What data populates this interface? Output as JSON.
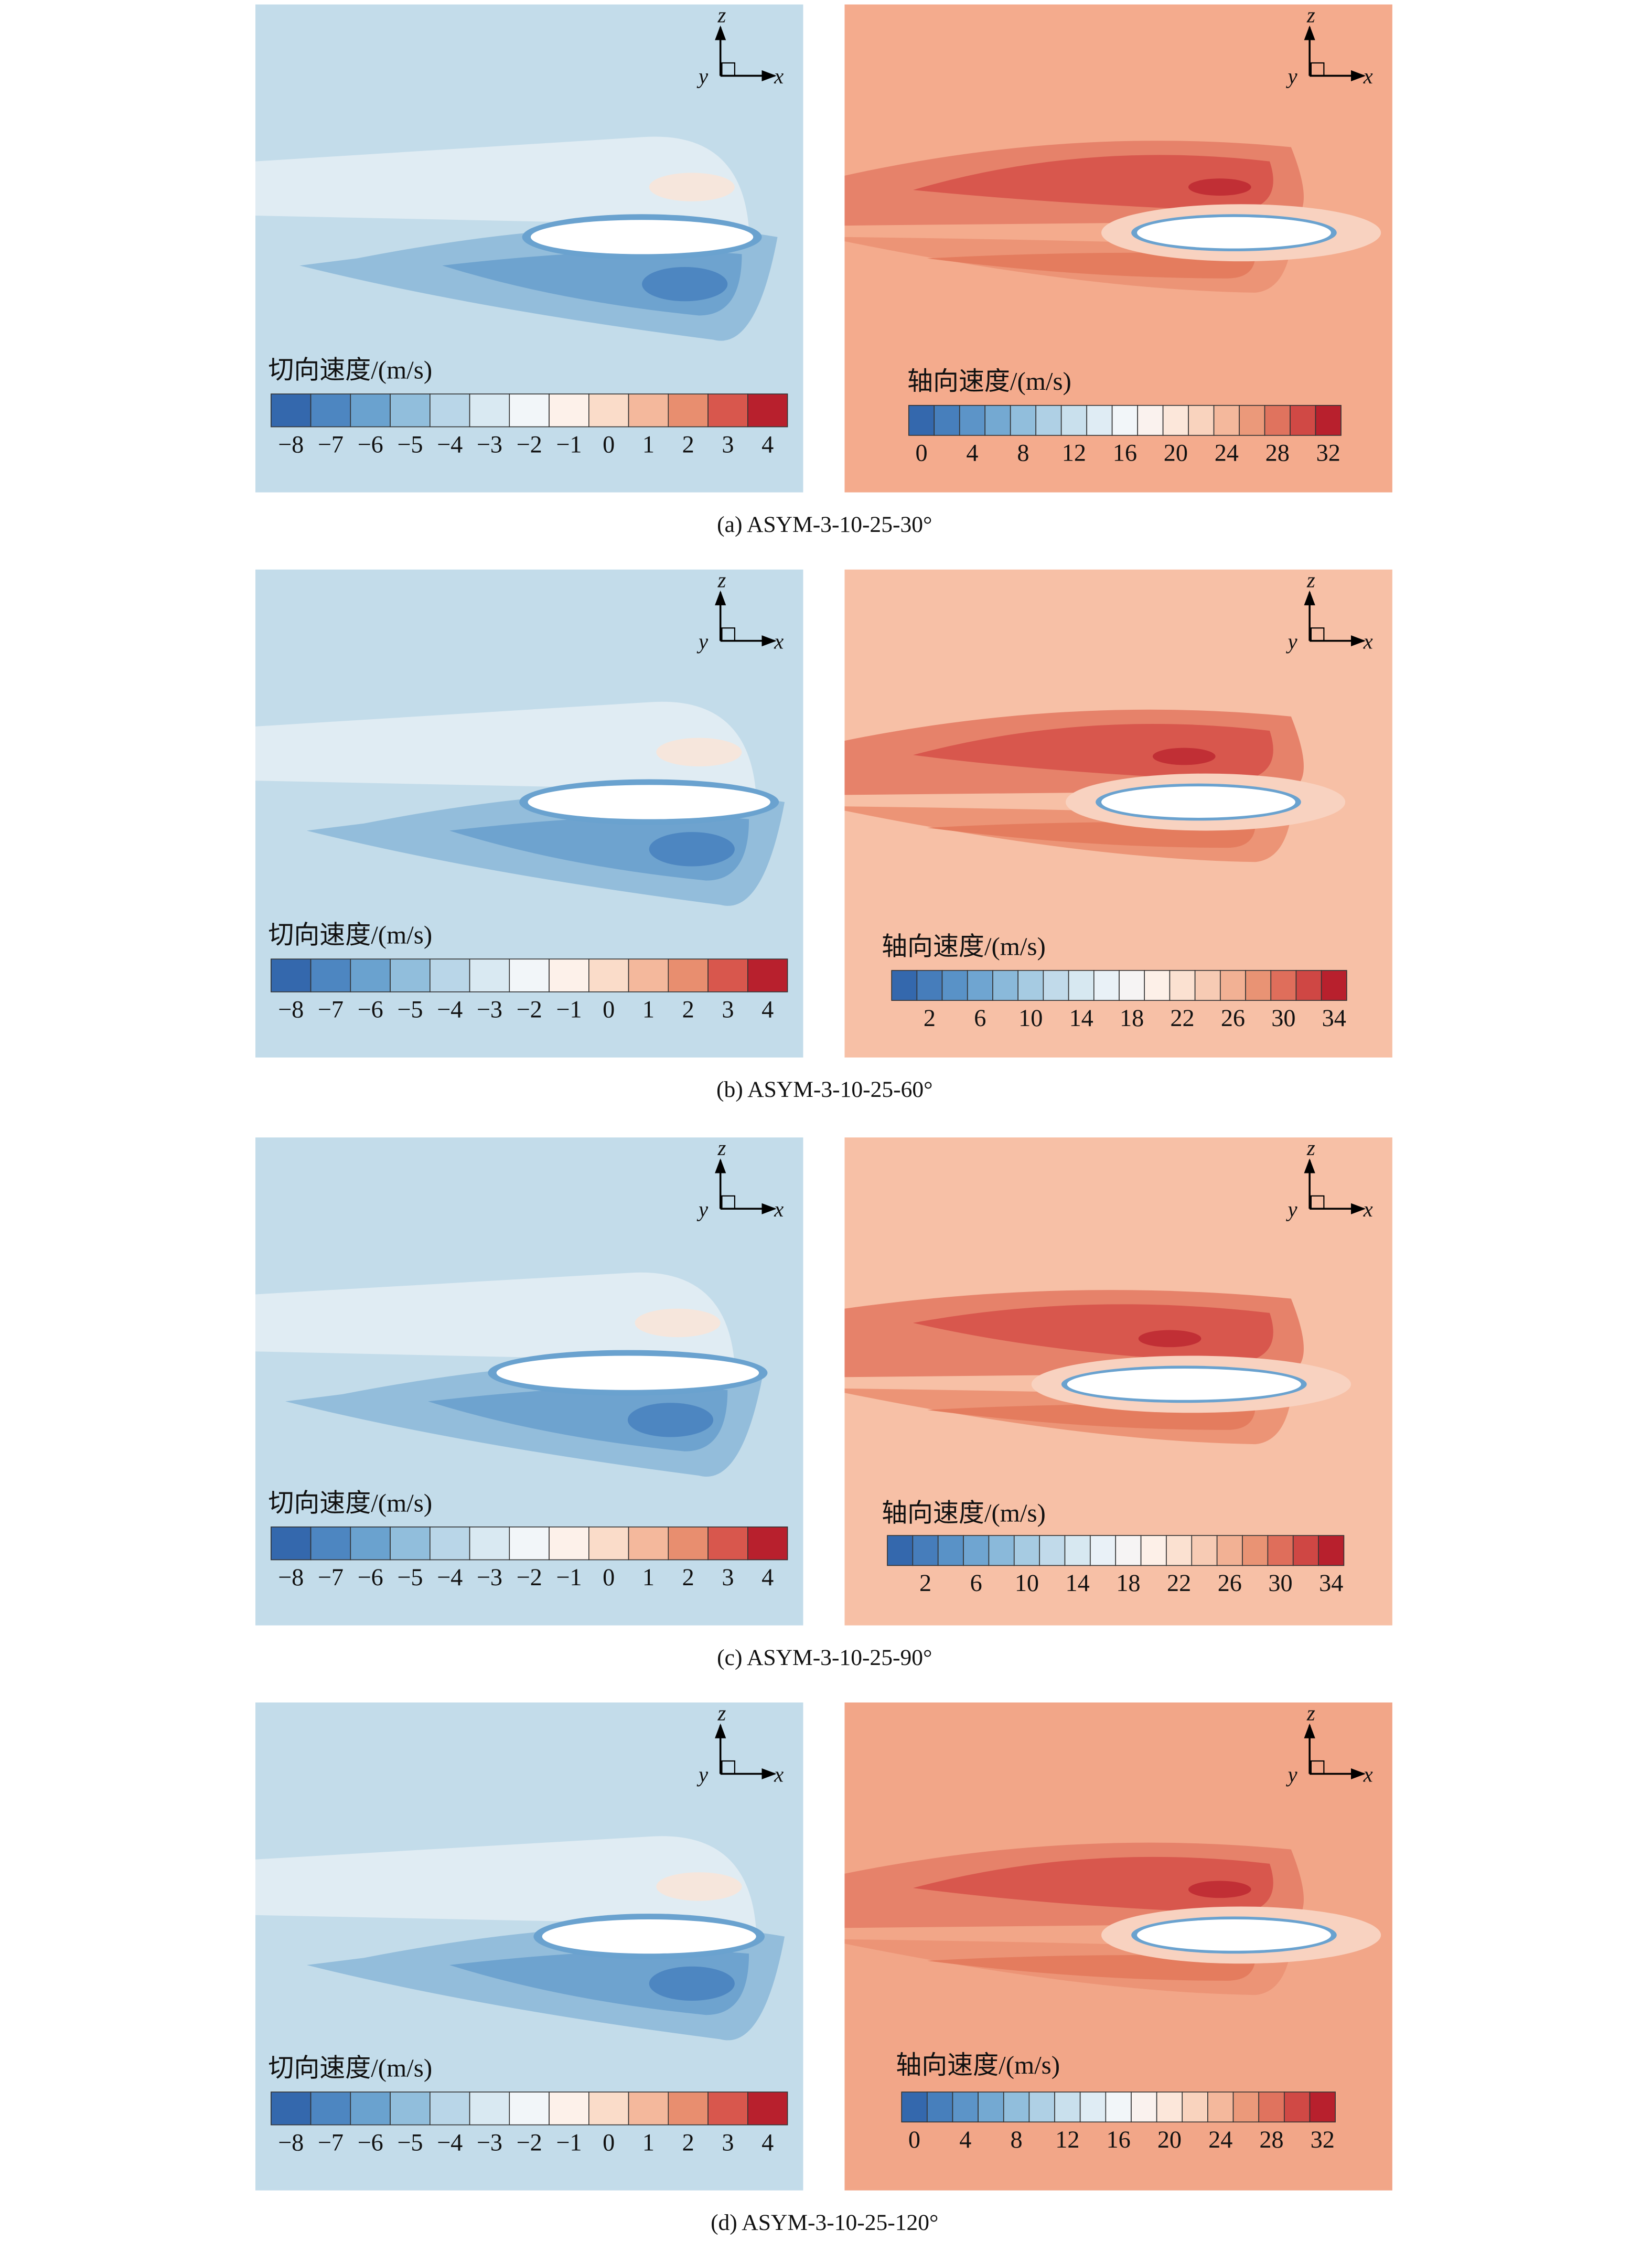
{
  "axis_labels": {
    "z": "z",
    "y": "y",
    "x": "x"
  },
  "panels": [
    {
      "caption": "(a) ASYM-3-10-25-30°",
      "left": {
        "label": "切向速度/(m/s)",
        "ticks": [
          "−8",
          "−7",
          "−6",
          "−5",
          "−4",
          "−3",
          "−2",
          "−1",
          "0",
          "1",
          "2",
          "3",
          "4"
        ]
      },
      "right": {
        "label": "轴向速度/(m/s)",
        "ticks": [
          "0",
          "4",
          "8",
          "12",
          "16",
          "20",
          "24",
          "28",
          "32"
        ]
      }
    },
    {
      "caption": "(b) ASYM-3-10-25-60°",
      "left": {
        "label": "切向速度/(m/s)",
        "ticks": [
          "−8",
          "−7",
          "−6",
          "−5",
          "−4",
          "−3",
          "−2",
          "−1",
          "0",
          "1",
          "2",
          "3",
          "4"
        ]
      },
      "right": {
        "label": "轴向速度/(m/s)",
        "ticks": [
          "2",
          "6",
          "10",
          "14",
          "18",
          "22",
          "26",
          "30",
          "34"
        ]
      }
    },
    {
      "caption": "(c) ASYM-3-10-25-90°",
      "left": {
        "label": "切向速度/(m/s)",
        "ticks": [
          "−8",
          "−7",
          "−6",
          "−5",
          "−4",
          "−3",
          "−2",
          "−1",
          "0",
          "1",
          "2",
          "3",
          "4"
        ]
      },
      "right": {
        "label": "轴向速度/(m/s)",
        "ticks": [
          "2",
          "6",
          "10",
          "14",
          "18",
          "22",
          "26",
          "30",
          "34"
        ]
      }
    },
    {
      "caption": "(d) ASYM-3-10-25-120°",
      "left": {
        "label": "切向速度/(m/s)",
        "ticks": [
          "−8",
          "−7",
          "−6",
          "−5",
          "−4",
          "−3",
          "−2",
          "−1",
          "0",
          "1",
          "2",
          "3",
          "4"
        ]
      },
      "right": {
        "label": "轴向速度/(m/s)",
        "ticks": [
          "0",
          "4",
          "8",
          "12",
          "16",
          "20",
          "24",
          "28",
          "32"
        ]
      }
    }
  ]
}
